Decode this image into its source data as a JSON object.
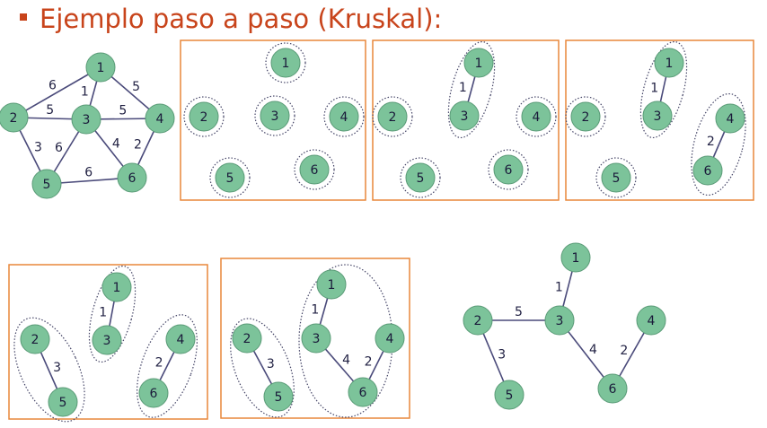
{
  "title": "Ejemplo paso a paso (Kruskal):",
  "colors": {
    "node_fill": "#7cc39a",
    "node_stroke": "#5a9b77",
    "edge": "#4a4a7a",
    "frame": "#e9873a",
    "title": "#c8441b",
    "label": "#222244",
    "cluster": "#444466"
  },
  "graphs": [
    {
      "id": "original",
      "nodes": [
        "1",
        "2",
        "3",
        "4",
        "5",
        "6"
      ],
      "edges": [
        {
          "from": "1",
          "to": "2",
          "weight": "6"
        },
        {
          "from": "1",
          "to": "3",
          "weight": "1"
        },
        {
          "from": "1",
          "to": "4",
          "weight": "5"
        },
        {
          "from": "2",
          "to": "3",
          "weight": "5"
        },
        {
          "from": "3",
          "to": "4",
          "weight": "5"
        },
        {
          "from": "2",
          "to": "5",
          "weight": "3"
        },
        {
          "from": "3",
          "to": "5",
          "weight": "6"
        },
        {
          "from": "3",
          "to": "6",
          "weight": "4"
        },
        {
          "from": "4",
          "to": "6",
          "weight": "2"
        },
        {
          "from": "5",
          "to": "6",
          "weight": "6"
        }
      ]
    },
    {
      "id": "step-1",
      "nodes": [
        "1",
        "2",
        "3",
        "4",
        "5",
        "6"
      ],
      "edges": []
    },
    {
      "id": "step-2",
      "nodes": [
        "1",
        "2",
        "3",
        "4",
        "5",
        "6"
      ],
      "edges": [
        {
          "from": "1",
          "to": "3",
          "weight": "1"
        }
      ]
    },
    {
      "id": "step-3",
      "nodes": [
        "1",
        "2",
        "3",
        "4",
        "5",
        "6"
      ],
      "edges": [
        {
          "from": "1",
          "to": "3",
          "weight": "1"
        },
        {
          "from": "4",
          "to": "6",
          "weight": "2"
        }
      ]
    },
    {
      "id": "step-4",
      "nodes": [
        "1",
        "2",
        "3",
        "4",
        "5",
        "6"
      ],
      "edges": [
        {
          "from": "1",
          "to": "3",
          "weight": "1"
        },
        {
          "from": "2",
          "to": "5",
          "weight": "3"
        },
        {
          "from": "4",
          "to": "6",
          "weight": "2"
        }
      ]
    },
    {
      "id": "step-5",
      "nodes": [
        "1",
        "2",
        "3",
        "4",
        "5",
        "6"
      ],
      "edges": [
        {
          "from": "1",
          "to": "3",
          "weight": "1"
        },
        {
          "from": "2",
          "to": "5",
          "weight": "3"
        },
        {
          "from": "3",
          "to": "6",
          "weight": "4"
        },
        {
          "from": "4",
          "to": "6",
          "weight": "2"
        }
      ]
    },
    {
      "id": "result",
      "nodes": [
        "1",
        "2",
        "3",
        "4",
        "5",
        "6"
      ],
      "edges": [
        {
          "from": "1",
          "to": "3",
          "weight": "1"
        },
        {
          "from": "2",
          "to": "3",
          "weight": "5"
        },
        {
          "from": "2",
          "to": "5",
          "weight": "3"
        },
        {
          "from": "3",
          "to": "6",
          "weight": "4"
        },
        {
          "from": "4",
          "to": "6",
          "weight": "2"
        }
      ]
    }
  ]
}
